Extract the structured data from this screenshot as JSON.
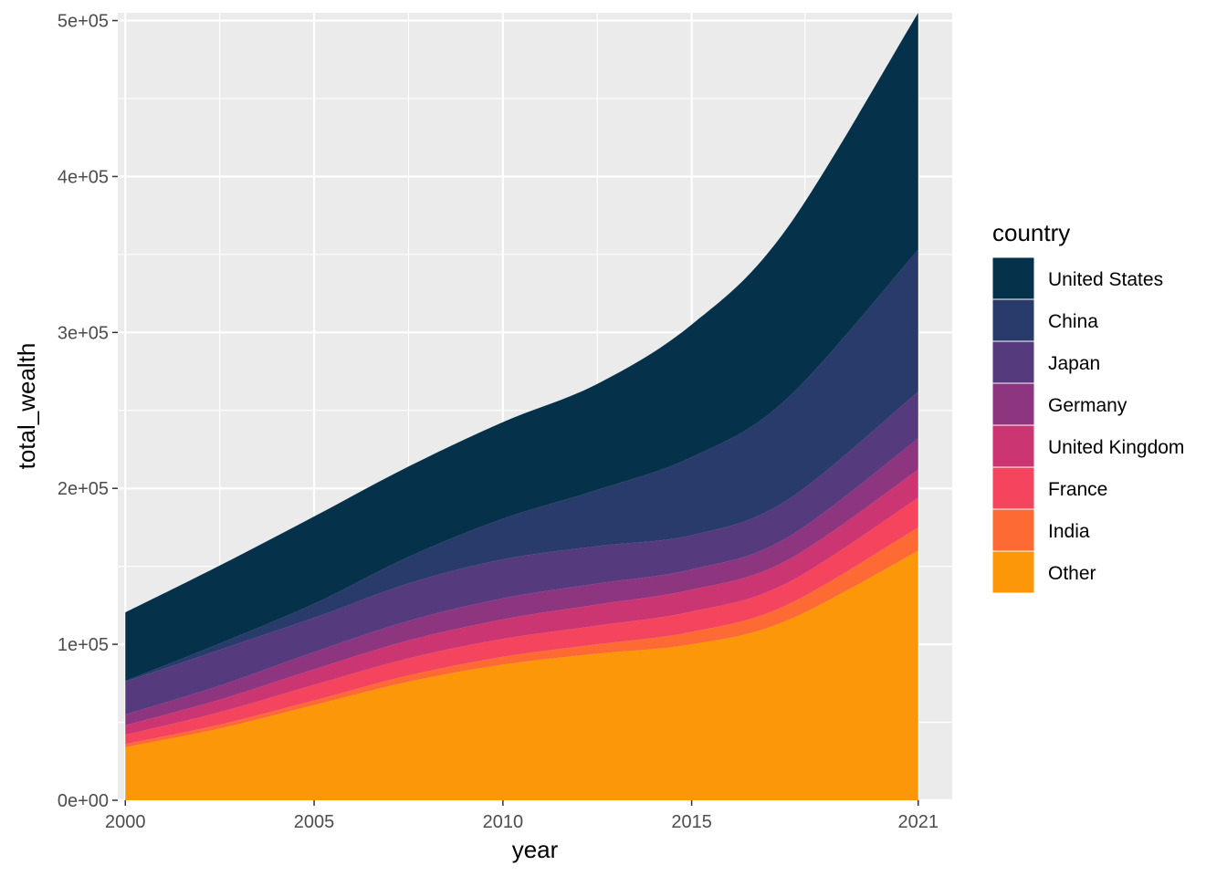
{
  "chart_data": {
    "type": "area",
    "stacked": true,
    "xlabel": "year",
    "ylabel": "total_wealth",
    "xlim": [
      1999.8,
      2021.9
    ],
    "ylim": [
      0,
      505000
    ],
    "x_ticks": [
      2000,
      2005,
      2010,
      2015,
      2021
    ],
    "x_tick_labels": [
      "2000",
      "2005",
      "2010",
      "2015",
      "2021"
    ],
    "y_ticks": [
      0,
      100000,
      200000,
      300000,
      400000,
      500000
    ],
    "y_tick_labels": [
      "0e+00",
      "1e+05",
      "2e+05",
      "3e+05",
      "4e+05",
      "5e+05"
    ],
    "grid": true,
    "legend": {
      "title": "country",
      "position": "right"
    },
    "x": [
      2000,
      2002.5,
      2005,
      2007.5,
      2010,
      2012.5,
      2015,
      2017.5,
      2021
    ],
    "series": [
      {
        "name": "Other",
        "color": "#FB9709",
        "values": [
          34000,
          46000,
          61000,
          76000,
          87000,
          94000,
          100000,
          115000,
          160000
        ]
      },
      {
        "name": "India",
        "color": "#FE6A34",
        "values": [
          2000,
          2500,
          3000,
          4000,
          5000,
          6000,
          8000,
          10000,
          15000
        ]
      },
      {
        "name": "France",
        "color": "#F5445D",
        "values": [
          6000,
          8000,
          10000,
          11000,
          11500,
          12000,
          13000,
          14000,
          19000
        ]
      },
      {
        "name": "United Kingdom",
        "color": "#CB3672",
        "values": [
          6000,
          8000,
          10000,
          11500,
          12500,
          13500,
          14000,
          14500,
          18000
        ]
      },
      {
        "name": "Germany",
        "color": "#8E3580",
        "values": [
          7000,
          9000,
          11000,
          12500,
          13500,
          13500,
          13000,
          14500,
          20000
        ]
      },
      {
        "name": "Japan",
        "color": "#553A7D",
        "values": [
          21000,
          23000,
          22000,
          24000,
          25000,
          24000,
          22000,
          24000,
          30000
        ]
      },
      {
        "name": "China",
        "color": "#283B6A",
        "values": [
          500,
          4000,
          9000,
          17000,
          26000,
          36000,
          50000,
          65000,
          91000
        ]
      },
      {
        "name": "United States",
        "color": "#05324A",
        "values": [
          44000,
          50000,
          56000,
          58000,
          62000,
          68000,
          85000,
          109000,
          152000
        ]
      }
    ]
  }
}
